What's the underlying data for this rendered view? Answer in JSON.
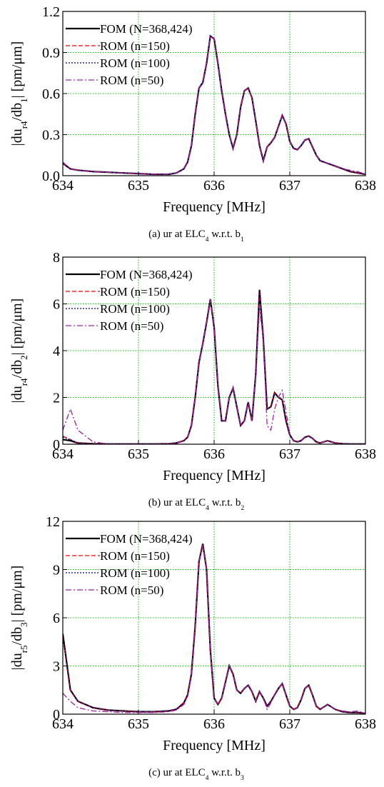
{
  "chart_data": [
    {
      "type": "line",
      "grid": true,
      "grid_color": "#00c000",
      "legend": "upper left",
      "xlabel": "Frequency [MHz]",
      "ylabel": [
        "|du",
        "r4",
        "/db",
        "1",
        "| [pm/μm]"
      ],
      "caption": [
        "(a) ur at ELC",
        "4",
        " w.r.t. b",
        "1"
      ],
      "xlim": [
        634,
        638
      ],
      "xticks": [
        634,
        635,
        636,
        637,
        638
      ],
      "ylim": [
        0,
        1.2
      ],
      "yticks": [
        {
          "value": 0,
          "label": "0.0"
        },
        0.3,
        0.6,
        0.9,
        1.2
      ],
      "x": [
        634,
        634.1,
        634.2,
        634.4,
        634.6,
        634.8,
        635,
        635.2,
        635.4,
        635.5,
        635.6,
        635.65,
        635.7,
        635.75,
        635.8,
        635.85,
        635.9,
        635.95,
        636,
        636.05,
        636.1,
        636.15,
        636.2,
        636.25,
        636.3,
        636.35,
        636.4,
        636.45,
        636.5,
        636.55,
        636.6,
        636.65,
        636.7,
        636.75,
        636.8,
        636.85,
        636.9,
        636.95,
        637,
        637.05,
        637.1,
        637.15,
        637.2,
        637.25,
        637.3,
        637.35,
        637.4,
        637.5,
        637.6,
        637.7,
        637.8,
        637.9,
        638
      ],
      "series": [
        {
          "name": "FOM (N=368,424)",
          "color": "#000000",
          "dash": "solid",
          "values": [
            0.09,
            0.05,
            0.04,
            0.03,
            0.025,
            0.02,
            0.015,
            0.01,
            0.01,
            0.02,
            0.05,
            0.1,
            0.22,
            0.45,
            0.64,
            0.68,
            0.82,
            1.02,
            1.0,
            0.82,
            0.62,
            0.45,
            0.3,
            0.2,
            0.3,
            0.5,
            0.62,
            0.64,
            0.57,
            0.4,
            0.22,
            0.11,
            0.21,
            0.24,
            0.28,
            0.36,
            0.44,
            0.38,
            0.25,
            0.2,
            0.19,
            0.22,
            0.26,
            0.27,
            0.21,
            0.15,
            0.11,
            0.09,
            0.07,
            0.05,
            0.03,
            0.02,
            0.01
          ]
        },
        {
          "name": "ROM (n=150)",
          "color": "#ff0000",
          "dash": "dashed",
          "values": [
            0.09,
            0.05,
            0.04,
            0.03,
            0.025,
            0.02,
            0.015,
            0.01,
            0.01,
            0.02,
            0.05,
            0.1,
            0.22,
            0.45,
            0.64,
            0.68,
            0.82,
            1.02,
            1.0,
            0.82,
            0.62,
            0.45,
            0.3,
            0.2,
            0.3,
            0.5,
            0.62,
            0.64,
            0.57,
            0.4,
            0.22,
            0.11,
            0.21,
            0.24,
            0.28,
            0.36,
            0.44,
            0.38,
            0.25,
            0.2,
            0.19,
            0.22,
            0.26,
            0.27,
            0.21,
            0.15,
            0.11,
            0.09,
            0.07,
            0.05,
            0.03,
            0.02,
            0.01
          ]
        },
        {
          "name": "ROM (n=100)",
          "color": "#00008b",
          "dash": "dotted",
          "values": [
            0.09,
            0.05,
            0.04,
            0.03,
            0.025,
            0.02,
            0.015,
            0.01,
            0.01,
            0.02,
            0.05,
            0.1,
            0.22,
            0.45,
            0.64,
            0.68,
            0.82,
            1.02,
            1.0,
            0.82,
            0.62,
            0.45,
            0.3,
            0.2,
            0.3,
            0.5,
            0.62,
            0.64,
            0.57,
            0.4,
            0.22,
            0.11,
            0.21,
            0.24,
            0.28,
            0.36,
            0.44,
            0.38,
            0.25,
            0.2,
            0.19,
            0.22,
            0.26,
            0.27,
            0.21,
            0.15,
            0.11,
            0.09,
            0.07,
            0.05,
            0.03,
            0.02,
            0.01
          ]
        },
        {
          "name": "ROM (n=50)",
          "color": "#a020a0",
          "dash": "dashdot",
          "values": [
            0.1,
            0.05,
            0.04,
            0.03,
            0.025,
            0.02,
            0.015,
            0.01,
            0.01,
            0.02,
            0.05,
            0.1,
            0.22,
            0.45,
            0.64,
            0.68,
            0.82,
            1.02,
            1.0,
            0.82,
            0.62,
            0.45,
            0.3,
            0.2,
            0.3,
            0.5,
            0.62,
            0.64,
            0.57,
            0.4,
            0.22,
            0.11,
            0.21,
            0.24,
            0.28,
            0.36,
            0.45,
            0.38,
            0.25,
            0.2,
            0.19,
            0.22,
            0.26,
            0.27,
            0.21,
            0.15,
            0.11,
            0.09,
            0.07,
            0.05,
            0.04,
            0.03,
            0.01
          ]
        }
      ]
    },
    {
      "type": "line",
      "grid": true,
      "grid_color": "#00c000",
      "legend": "upper left",
      "xlabel": "Frequency [MHz]",
      "ylabel": [
        "|du",
        "r4",
        "/db",
        "2",
        "| [pm/μm]"
      ],
      "caption": [
        "(b) ur at ELC",
        "4",
        " w.r.t. b",
        "2"
      ],
      "xlim": [
        634,
        638
      ],
      "xticks": [
        634,
        635,
        636,
        637,
        638
      ],
      "ylim": [
        0,
        8
      ],
      "yticks": [
        0,
        2,
        4,
        6,
        8
      ],
      "x": [
        634,
        634.1,
        634.2,
        634.4,
        634.6,
        634.8,
        635,
        635.2,
        635.4,
        635.5,
        635.6,
        635.65,
        635.7,
        635.75,
        635.8,
        635.85,
        635.9,
        635.95,
        636,
        636.05,
        636.1,
        636.15,
        636.2,
        636.25,
        636.3,
        636.35,
        636.4,
        636.45,
        636.5,
        636.55,
        636.6,
        636.65,
        636.7,
        636.75,
        636.8,
        636.85,
        636.9,
        636.95,
        637,
        637.05,
        637.1,
        637.15,
        637.2,
        637.25,
        637.3,
        637.35,
        637.4,
        637.5,
        637.6,
        637.7,
        637.8,
        637.9,
        638
      ],
      "series": [
        {
          "name": "FOM (N=368,424)",
          "color": "#000000",
          "dash": "solid",
          "values": [
            0.2,
            0.15,
            0.05,
            0.02,
            0.01,
            0.01,
            0.01,
            0.01,
            0.02,
            0.05,
            0.15,
            0.3,
            0.8,
            2.0,
            3.5,
            4.3,
            5.2,
            6.2,
            5.0,
            2.5,
            1.0,
            1.0,
            2.0,
            2.4,
            1.6,
            0.8,
            1.0,
            1.8,
            1.0,
            3.0,
            6.6,
            4.5,
            1.5,
            1.6,
            2.2,
            2.0,
            1.9,
            1.0,
            0.4,
            0.15,
            0.1,
            0.15,
            0.3,
            0.35,
            0.25,
            0.1,
            0.05,
            0.15,
            0.05,
            0.02,
            0.01,
            0.01,
            0.01
          ]
        },
        {
          "name": "ROM (n=150)",
          "color": "#ff0000",
          "dash": "dashed",
          "values": [
            0.35,
            0.2,
            0.05,
            0.02,
            0.01,
            0.01,
            0.01,
            0.01,
            0.02,
            0.05,
            0.15,
            0.3,
            0.8,
            2.0,
            3.5,
            4.3,
            5.2,
            6.2,
            5.0,
            2.5,
            1.0,
            1.0,
            2.0,
            2.4,
            1.6,
            0.8,
            1.0,
            1.8,
            1.0,
            3.0,
            6.6,
            4.5,
            1.5,
            1.6,
            2.2,
            2.0,
            1.9,
            1.0,
            0.4,
            0.15,
            0.1,
            0.15,
            0.3,
            0.35,
            0.25,
            0.1,
            0.05,
            0.15,
            0.05,
            0.02,
            0.01,
            0.01,
            0.01
          ]
        },
        {
          "name": "ROM (n=100)",
          "color": "#00008b",
          "dash": "dotted",
          "values": [
            0.3,
            0.2,
            0.05,
            0.02,
            0.01,
            0.01,
            0.01,
            0.01,
            0.02,
            0.05,
            0.15,
            0.3,
            0.8,
            2.0,
            3.5,
            4.3,
            5.2,
            6.2,
            5.0,
            2.5,
            1.0,
            1.0,
            2.0,
            2.4,
            1.6,
            0.8,
            1.0,
            1.8,
            1.0,
            3.0,
            6.6,
            4.5,
            1.5,
            1.6,
            2.2,
            2.0,
            1.9,
            1.0,
            0.4,
            0.15,
            0.1,
            0.15,
            0.3,
            0.35,
            0.25,
            0.1,
            0.05,
            0.15,
            0.05,
            0.02,
            0.01,
            0.01,
            0.01
          ]
        },
        {
          "name": "ROM (n=50)",
          "color": "#a020a0",
          "dash": "dashdot",
          "values": [
            0.6,
            1.5,
            0.6,
            0.1,
            0.01,
            0.01,
            0.01,
            0.01,
            0.02,
            0.05,
            0.15,
            0.3,
            0.8,
            2.0,
            3.5,
            4.3,
            5.2,
            6.2,
            5.0,
            2.5,
            1.0,
            1.0,
            2.0,
            2.4,
            1.6,
            0.8,
            1.0,
            1.8,
            1.0,
            3.0,
            5.8,
            4.5,
            0.8,
            0.6,
            1.5,
            2.0,
            2.3,
            1.4,
            0.4,
            0.15,
            0.1,
            0.15,
            0.3,
            0.35,
            0.25,
            0.1,
            0.05,
            0.15,
            0.05,
            0.02,
            0.01,
            0.01,
            0.01
          ]
        }
      ]
    },
    {
      "type": "line",
      "grid": true,
      "grid_color": "#00c000",
      "legend": "upper left",
      "xlabel": "Frequency [MHz]",
      "ylabel": [
        "|du",
        "r5",
        "/db",
        "3",
        "| [pm/μm]"
      ],
      "caption": [
        "(c) ur at ELC",
        "4",
        " w.r.t. b",
        "3"
      ],
      "xlim": [
        634,
        638
      ],
      "xticks": [
        634,
        635,
        636,
        637,
        638
      ],
      "ylim": [
        0,
        12
      ],
      "yticks": [
        0,
        3,
        6,
        9,
        12
      ],
      "x": [
        634,
        634.1,
        634.2,
        634.4,
        634.6,
        634.8,
        635,
        635.2,
        635.4,
        635.5,
        635.6,
        635.65,
        635.7,
        635.75,
        635.8,
        635.85,
        635.9,
        635.95,
        636,
        636.05,
        636.1,
        636.15,
        636.2,
        636.25,
        636.3,
        636.35,
        636.4,
        636.45,
        636.5,
        636.55,
        636.6,
        636.65,
        636.7,
        636.75,
        636.8,
        636.85,
        636.9,
        636.95,
        637,
        637.05,
        637.1,
        637.15,
        637.2,
        637.25,
        637.3,
        637.35,
        637.4,
        637.5,
        637.6,
        637.7,
        637.8,
        637.9,
        638
      ],
      "series": [
        {
          "name": "FOM (N=368,424)",
          "color": "#000000",
          "dash": "solid",
          "values": [
            5.0,
            1.5,
            0.8,
            0.4,
            0.25,
            0.2,
            0.15,
            0.15,
            0.2,
            0.3,
            0.7,
            1.2,
            2.5,
            5.5,
            9.5,
            10.6,
            9.0,
            4.0,
            1.0,
            0.6,
            1.0,
            2.0,
            3.0,
            2.5,
            1.5,
            1.3,
            1.6,
            1.8,
            1.4,
            0.8,
            1.4,
            1.0,
            0.5,
            0.8,
            1.2,
            1.6,
            1.9,
            1.2,
            0.5,
            0.3,
            0.4,
            0.9,
            1.6,
            1.8,
            1.2,
            0.5,
            0.3,
            0.6,
            0.3,
            0.15,
            0.1,
            0.1,
            0.05
          ]
        },
        {
          "name": "ROM (n=150)",
          "color": "#ff0000",
          "dash": "dashed",
          "values": [
            4.8,
            1.5,
            0.8,
            0.4,
            0.25,
            0.2,
            0.15,
            0.15,
            0.2,
            0.3,
            0.7,
            1.2,
            2.5,
            5.5,
            9.5,
            10.6,
            9.0,
            4.0,
            1.0,
            0.6,
            1.0,
            2.0,
            3.0,
            2.5,
            1.5,
            1.3,
            1.6,
            1.8,
            1.4,
            0.8,
            1.4,
            1.0,
            0.5,
            0.8,
            1.2,
            1.6,
            1.9,
            1.2,
            0.5,
            0.3,
            0.4,
            0.9,
            1.6,
            1.8,
            1.2,
            0.5,
            0.3,
            0.6,
            0.3,
            0.15,
            0.1,
            0.1,
            0.05
          ]
        },
        {
          "name": "ROM (n=100)",
          "color": "#00008b",
          "dash": "dotted",
          "values": [
            4.8,
            1.5,
            0.8,
            0.4,
            0.25,
            0.2,
            0.15,
            0.15,
            0.2,
            0.3,
            0.7,
            1.2,
            2.5,
            5.5,
            9.5,
            10.6,
            9.0,
            4.0,
            1.0,
            0.6,
            1.0,
            2.0,
            3.0,
            2.5,
            1.5,
            1.3,
            1.6,
            1.8,
            1.4,
            0.8,
            1.4,
            1.0,
            0.5,
            0.8,
            1.2,
            1.6,
            1.9,
            1.2,
            0.5,
            0.3,
            0.4,
            0.9,
            1.6,
            1.8,
            1.2,
            0.5,
            0.3,
            0.6,
            0.3,
            0.15,
            0.1,
            0.1,
            0.05
          ]
        },
        {
          "name": "ROM (n=50)",
          "color": "#a020a0",
          "dash": "dashdot",
          "values": [
            1.3,
            0.8,
            0.4,
            0.2,
            0.15,
            0.1,
            0.1,
            0.1,
            0.15,
            0.25,
            0.6,
            1.1,
            2.4,
            5.4,
            9.4,
            10.5,
            9.0,
            4.0,
            1.0,
            0.6,
            1.0,
            2.0,
            3.0,
            2.5,
            1.5,
            1.3,
            1.6,
            1.8,
            1.4,
            0.8,
            1.4,
            1.0,
            0.3,
            0.7,
            1.2,
            1.6,
            1.9,
            1.2,
            0.5,
            0.3,
            0.4,
            0.9,
            1.6,
            1.8,
            1.2,
            0.5,
            0.3,
            0.6,
            0.3,
            0.2,
            0.15,
            0.2,
            0.05
          ]
        }
      ]
    }
  ]
}
